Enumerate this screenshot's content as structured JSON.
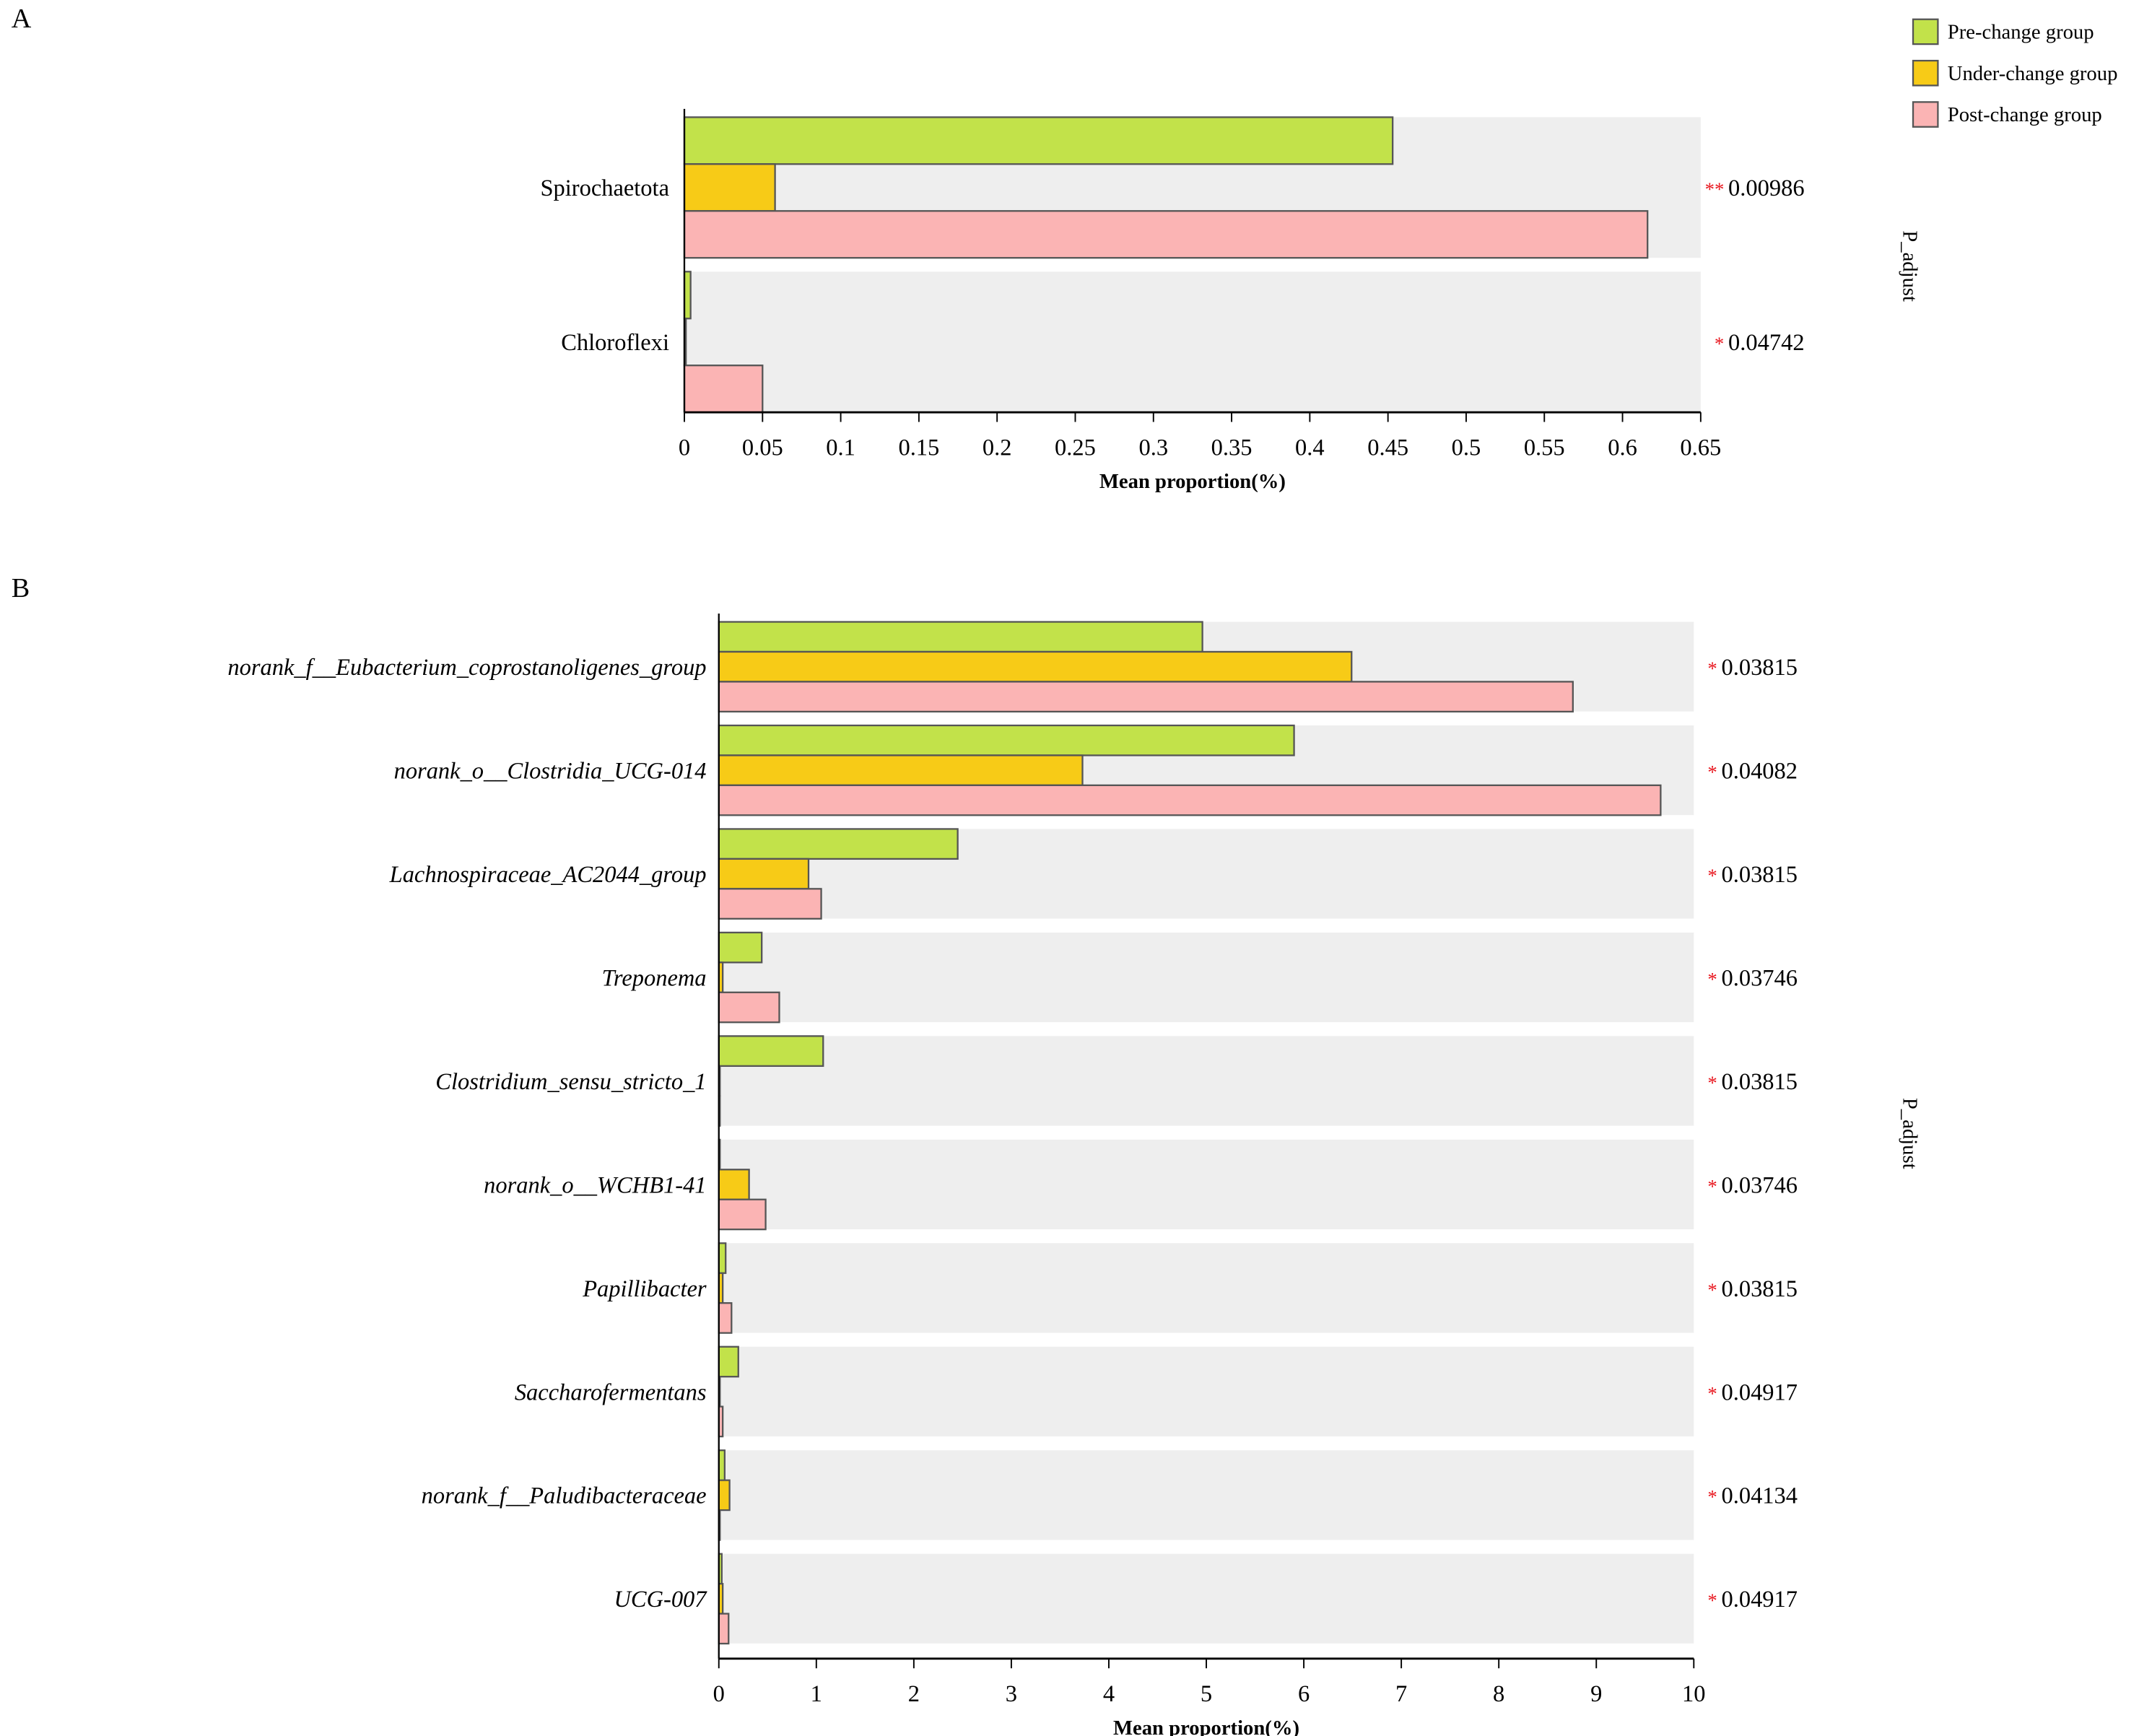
{
  "colors": {
    "pre": "#c2e24a",
    "under": "#f7cb17",
    "post": "#fbb4b4",
    "row_background": "#eeeeee",
    "bar_stroke": "#555555",
    "star": "#e8141c"
  },
  "legend": {
    "placement": "top-right",
    "items": [
      "Pre-change group",
      "Under-change group",
      "Post-change group"
    ]
  },
  "chart_data": [
    {
      "panel_label": "A",
      "type": "bar",
      "orientation": "horizontal",
      "xlabel": "Mean proportion(%)",
      "side_label": "P_adjust",
      "xlim": [
        0,
        0.65
      ],
      "ticks": [
        "0",
        "0.05",
        "0.1",
        "0.15",
        "0.2",
        "0.25",
        "0.3",
        "0.35",
        "0.4",
        "0.45",
        "0.5",
        "0.55",
        "0.6",
        "0.65"
      ],
      "label_italic": false,
      "categories": [
        "Spirochaetota",
        "Chloroflexi"
      ],
      "series": [
        {
          "name": "Pre-change group",
          "values": [
            0.453,
            0.004
          ]
        },
        {
          "name": "Under-change group",
          "values": [
            0.058,
            0.001
          ]
        },
        {
          "name": "Post-change group",
          "values": [
            0.616,
            0.05
          ]
        }
      ],
      "stars": [
        "**",
        "*"
      ],
      "p_values": [
        "0.00986",
        "0.04742"
      ]
    },
    {
      "panel_label": "B",
      "type": "bar",
      "orientation": "horizontal",
      "xlabel": "Mean proportion(%)",
      "side_label": "P_adjust",
      "xlim": [
        0,
        10
      ],
      "ticks": [
        "0",
        "1",
        "2",
        "3",
        "4",
        "5",
        "6",
        "7",
        "8",
        "9",
        "10"
      ],
      "label_italic": true,
      "categories": [
        "norank_f__Eubacterium_coprostanoligenes_group",
        "norank_o__Clostridia_UCG-014",
        "Lachnospiraceae_AC2044_group",
        "Treponema",
        "Clostridium_sensu_stricto_1",
        "norank_o__WCHB1-41",
        "Papillibacter",
        "Saccharofermentans",
        "norank_f__Paludibacteraceae",
        "UCG-007"
      ],
      "series": [
        {
          "name": "Pre-change group",
          "values": [
            4.96,
            5.9,
            2.45,
            0.44,
            1.07,
            0.01,
            0.07,
            0.2,
            0.06,
            0.03
          ]
        },
        {
          "name": "Under-change group",
          "values": [
            6.49,
            3.73,
            0.92,
            0.04,
            0.0,
            0.31,
            0.04,
            0.0,
            0.11,
            0.04
          ]
        },
        {
          "name": "Post-change group",
          "values": [
            8.76,
            9.66,
            1.05,
            0.62,
            0.0,
            0.48,
            0.13,
            0.04,
            0.0,
            0.1
          ]
        }
      ],
      "stars": [
        "*",
        "*",
        "*",
        "*",
        "*",
        "*",
        "*",
        "*",
        "*",
        "*"
      ],
      "p_values": [
        "0.03815",
        "0.04082",
        "0.03815",
        "0.03746",
        "0.03815",
        "0.03746",
        "0.03815",
        "0.04917",
        "0.04134",
        "0.04917"
      ]
    }
  ]
}
